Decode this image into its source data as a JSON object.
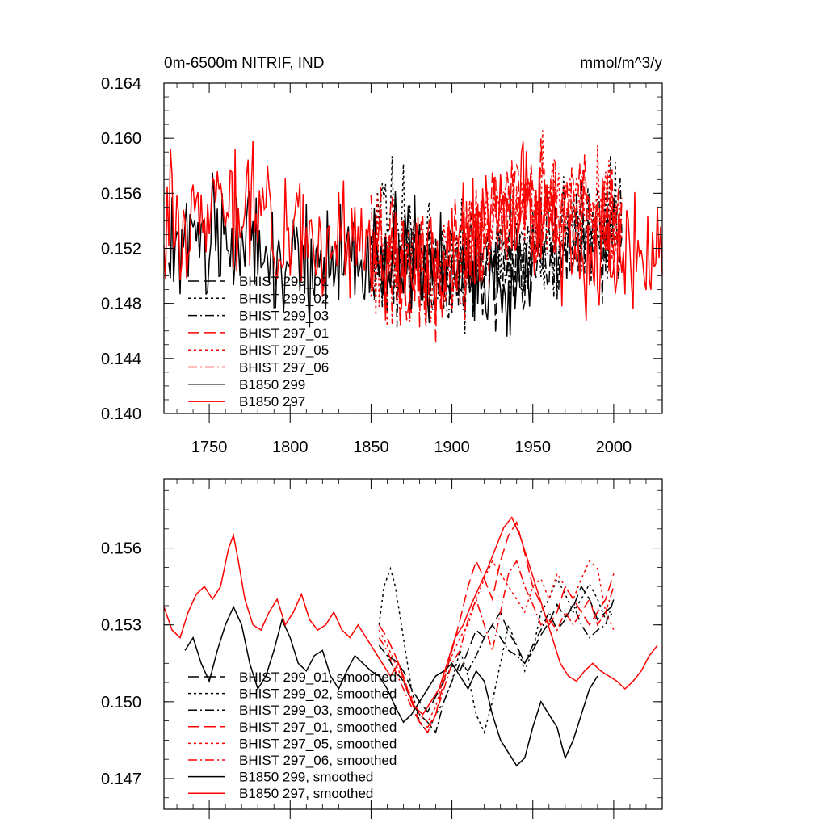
{
  "chart_data": [
    {
      "type": "line",
      "title": "0m-6500m NITRIF, IND",
      "units": "mmol/m^3/y",
      "ylim": [
        0.14,
        0.164
      ],
      "xlim": [
        1722,
        2030
      ],
      "yticks": [
        "0.140",
        "0.144",
        "0.148",
        "0.152",
        "0.156",
        "0.160",
        "0.164"
      ],
      "yticks_values": [
        0.14,
        0.144,
        0.148,
        0.152,
        0.156,
        0.16,
        0.164
      ],
      "xticks": [
        "1750",
        "1800",
        "1850",
        "1900",
        "1950",
        "2000"
      ],
      "xticks_values": [
        1750,
        1800,
        1850,
        1900,
        1950,
        2000
      ],
      "legend_position": "bottom-left",
      "series": [
        {
          "name": "BHIST 299_01",
          "color": "#000000",
          "dash": "longdash",
          "x_range": [
            1850,
            2005
          ],
          "mean": 0.1515,
          "amp": 0.004,
          "seed": 11,
          "anchors": [
            [
              1850,
              0.151
            ],
            [
              1900,
              0.151
            ],
            [
              1950,
              0.151
            ],
            [
              2005,
              0.153
            ]
          ]
        },
        {
          "name": "BHIST 299_02",
          "color": "#000000",
          "dash": "dot",
          "x_range": [
            1850,
            2005
          ],
          "mean": 0.1518,
          "amp": 0.0042,
          "seed": 12,
          "anchors": [
            [
              1850,
              0.151
            ],
            [
              1860,
              0.155
            ],
            [
              1900,
              0.151
            ],
            [
              1950,
              0.152
            ],
            [
              2005,
              0.154
            ]
          ]
        },
        {
          "name": "BHIST 299_03",
          "color": "#000000",
          "dash": "dashdot",
          "x_range": [
            1850,
            2005
          ],
          "mean": 0.1515,
          "amp": 0.004,
          "seed": 13,
          "anchors": [
            [
              1850,
              0.151
            ],
            [
              1900,
              0.15
            ],
            [
              1950,
              0.152
            ],
            [
              2005,
              0.153
            ]
          ]
        },
        {
          "name": "BHIST 297_01",
          "color": "#ff0000",
          "dash": "longdash",
          "x_range": [
            1850,
            2005
          ],
          "mean": 0.1528,
          "amp": 0.0042,
          "seed": 21,
          "anchors": [
            [
              1850,
              0.152
            ],
            [
              1890,
              0.15
            ],
            [
              1940,
              0.156
            ],
            [
              2005,
              0.154
            ]
          ]
        },
        {
          "name": "BHIST 297_05",
          "color": "#ff0000",
          "dash": "dot",
          "x_range": [
            1850,
            2005
          ],
          "mean": 0.153,
          "amp": 0.0042,
          "seed": 22,
          "anchors": [
            [
              1850,
              0.152
            ],
            [
              1890,
              0.15
            ],
            [
              1935,
              0.155
            ],
            [
              2005,
              0.155
            ]
          ]
        },
        {
          "name": "BHIST 297_06",
          "color": "#ff0000",
          "dash": "dashdot",
          "x_range": [
            1850,
            2005
          ],
          "mean": 0.1528,
          "amp": 0.0042,
          "seed": 23,
          "anchors": [
            [
              1850,
              0.152
            ],
            [
              1890,
              0.15
            ],
            [
              1945,
              0.155
            ],
            [
              2005,
              0.154
            ]
          ]
        },
        {
          "name": "B1850 299",
          "color": "#000000",
          "dash": "solid",
          "x_range": [
            1725,
            1950
          ],
          "mean": 0.151,
          "amp": 0.0042,
          "seed": 31,
          "anchors": [
            [
              1725,
              0.152
            ],
            [
              1765,
              0.153
            ],
            [
              1800,
              0.151
            ],
            [
              1860,
              0.151
            ],
            [
              1900,
              0.15
            ],
            [
              1950,
              0.149
            ]
          ]
        },
        {
          "name": "B1850 297",
          "color": "#ff0000",
          "dash": "solid",
          "x_range": [
            1722,
            2030
          ],
          "mean": 0.153,
          "amp": 0.0045,
          "seed": 32,
          "anchors": [
            [
              1722,
              0.154
            ],
            [
              1765,
              0.156
            ],
            [
              1800,
              0.153
            ],
            [
              1850,
              0.152
            ],
            [
              1890,
              0.15
            ],
            [
              1940,
              0.156
            ],
            [
              1970,
              0.152
            ],
            [
              2030,
              0.152
            ]
          ]
        }
      ]
    },
    {
      "type": "line",
      "title": "",
      "ylim": [
        0.1458,
        0.1587
      ],
      "xlim": [
        1722,
        2030
      ],
      "yticks": [
        "0.147",
        "0.150",
        "0.153",
        "0.156"
      ],
      "yticks_values": [
        0.147,
        0.15,
        0.153,
        0.156
      ],
      "xticks_values": [
        1750,
        1800,
        1850,
        1900,
        1950,
        2000
      ],
      "legend_position": "bottom-left",
      "series": [
        {
          "name": "BHIST 299_01, smoothed",
          "color": "#000000",
          "dash": "longdash",
          "x": [
            1860,
            1865,
            1870,
            1875,
            1880,
            1885,
            1890,
            1895,
            1900,
            1905,
            1910,
            1915,
            1920,
            1925,
            1930,
            1935,
            1940,
            1945,
            1950,
            1955,
            1960,
            1965,
            1970,
            1975,
            1980,
            1985,
            1990,
            1995,
            2000
          ],
          "y": [
            0.1518,
            0.1516,
            0.1512,
            0.1505,
            0.15,
            0.1496,
            0.1502,
            0.1508,
            0.1514,
            0.1512,
            0.152,
            0.1528,
            0.1525,
            0.153,
            0.1535,
            0.1527,
            0.1522,
            0.1515,
            0.152,
            0.1526,
            0.1531,
            0.1538,
            0.1533,
            0.1537,
            0.1545,
            0.154,
            0.1532,
            0.1535,
            0.1538
          ]
        },
        {
          "name": "BHIST 299_02, smoothed",
          "color": "#000000",
          "dash": "dot",
          "x": [
            1855,
            1858,
            1862,
            1865,
            1870,
            1875,
            1880,
            1885,
            1890,
            1895,
            1900,
            1905,
            1910,
            1915,
            1920,
            1925,
            1930,
            1935,
            1940,
            1945,
            1950,
            1955,
            1960,
            1965,
            1970,
            1975,
            1980,
            1985,
            1990,
            1995,
            2000
          ],
          "y": [
            0.153,
            0.1545,
            0.1552,
            0.1545,
            0.1525,
            0.1505,
            0.1492,
            0.1488,
            0.1495,
            0.15,
            0.1508,
            0.152,
            0.151,
            0.1495,
            0.1488,
            0.15,
            0.1515,
            0.153,
            0.1522,
            0.1512,
            0.152,
            0.1535,
            0.154,
            0.1548,
            0.1542,
            0.1535,
            0.154,
            0.1546,
            0.154,
            0.1532,
            0.1535
          ]
        },
        {
          "name": "BHIST 299_03, smoothed",
          "color": "#000000",
          "dash": "dashdot",
          "x": [
            1855,
            1860,
            1865,
            1870,
            1875,
            1880,
            1885,
            1890,
            1895,
            1900,
            1905,
            1910,
            1915,
            1920,
            1925,
            1930,
            1935,
            1940,
            1945,
            1950,
            1955,
            1960,
            1965,
            1970,
            1975,
            1980,
            1985,
            1990,
            1995,
            2000
          ],
          "y": [
            0.1522,
            0.1518,
            0.1512,
            0.1508,
            0.15,
            0.1495,
            0.1492,
            0.1488,
            0.15,
            0.1508,
            0.1515,
            0.1512,
            0.1518,
            0.1525,
            0.153,
            0.1525,
            0.152,
            0.1518,
            0.1515,
            0.1522,
            0.1528,
            0.1535,
            0.1528,
            0.1532,
            0.1538,
            0.153,
            0.1525,
            0.1528,
            0.153,
            0.154
          ]
        },
        {
          "name": "BHIST 297_01, smoothed",
          "color": "#ff0000",
          "dash": "longdash",
          "x": [
            1855,
            1860,
            1865,
            1870,
            1875,
            1880,
            1885,
            1890,
            1895,
            1900,
            1905,
            1910,
            1915,
            1920,
            1925,
            1930,
            1935,
            1940,
            1945,
            1950,
            1955,
            1960,
            1965,
            1970,
            1975,
            1980,
            1985,
            1990,
            1995,
            2000
          ],
          "y": [
            0.153,
            0.1525,
            0.1518,
            0.151,
            0.15,
            0.1492,
            0.149,
            0.1495,
            0.1508,
            0.152,
            0.1532,
            0.1545,
            0.1555,
            0.1548,
            0.154,
            0.1555,
            0.1565,
            0.157,
            0.1558,
            0.1545,
            0.1538,
            0.153,
            0.1535,
            0.1545,
            0.154,
            0.1535,
            0.153,
            0.1535,
            0.154,
            0.155
          ]
        },
        {
          "name": "BHIST 297_05, smoothed",
          "color": "#ff0000",
          "dash": "dot",
          "x": [
            1855,
            1860,
            1865,
            1870,
            1875,
            1880,
            1885,
            1890,
            1895,
            1900,
            1905,
            1910,
            1915,
            1920,
            1925,
            1930,
            1935,
            1940,
            1945,
            1950,
            1955,
            1960,
            1965,
            1970,
            1975,
            1980,
            1985,
            1990,
            1995,
            2000
          ],
          "y": [
            0.1528,
            0.1522,
            0.1515,
            0.1508,
            0.1502,
            0.1495,
            0.1492,
            0.1498,
            0.151,
            0.1518,
            0.1525,
            0.153,
            0.154,
            0.1548,
            0.1555,
            0.155,
            0.1545,
            0.154,
            0.1535,
            0.1545,
            0.1548,
            0.154,
            0.155,
            0.1545,
            0.154,
            0.1548,
            0.1555,
            0.1552,
            0.1535,
            0.1528
          ]
        },
        {
          "name": "BHIST 297_06, smoothed",
          "color": "#ff0000",
          "dash": "dashdot",
          "x": [
            1855,
            1860,
            1865,
            1870,
            1875,
            1880,
            1885,
            1890,
            1895,
            1900,
            1905,
            1910,
            1915,
            1920,
            1925,
            1930,
            1935,
            1940,
            1945,
            1950,
            1955,
            1960,
            1965,
            1970,
            1975,
            1980,
            1985,
            1990,
            1995,
            2000
          ],
          "y": [
            0.1525,
            0.152,
            0.1512,
            0.1505,
            0.1498,
            0.1492,
            0.1488,
            0.1495,
            0.1505,
            0.1515,
            0.152,
            0.1532,
            0.154,
            0.153,
            0.152,
            0.1535,
            0.155,
            0.1555,
            0.1545,
            0.1538,
            0.153,
            0.1532,
            0.1528,
            0.1535,
            0.153,
            0.1535,
            0.154,
            0.153,
            0.1535,
            0.1545
          ]
        },
        {
          "name": "B1850 299, smoothed",
          "color": "#000000",
          "dash": "solid",
          "x": [
            1735,
            1740,
            1745,
            1750,
            1755,
            1760,
            1765,
            1770,
            1775,
            1780,
            1785,
            1790,
            1795,
            1800,
            1805,
            1810,
            1815,
            1820,
            1825,
            1830,
            1835,
            1840,
            1845,
            1850,
            1855,
            1860,
            1865,
            1870,
            1875,
            1880,
            1885,
            1890,
            1895,
            1900,
            1905,
            1910,
            1915,
            1920,
            1925,
            1930,
            1935,
            1940,
            1945,
            1950,
            1955,
            1960,
            1965,
            1970,
            1975,
            1980,
            1985,
            1990
          ],
          "y": [
            0.152,
            0.1525,
            0.1515,
            0.1508,
            0.152,
            0.153,
            0.1537,
            0.153,
            0.1515,
            0.1505,
            0.151,
            0.152,
            0.1532,
            0.1525,
            0.1515,
            0.1512,
            0.1518,
            0.152,
            0.151,
            0.1505,
            0.1512,
            0.1518,
            0.1515,
            0.1512,
            0.151,
            0.1505,
            0.1498,
            0.1492,
            0.1495,
            0.15,
            0.1505,
            0.151,
            0.1512,
            0.1515,
            0.151,
            0.1505,
            0.1512,
            0.1508,
            0.1495,
            0.1485,
            0.148,
            0.1475,
            0.1478,
            0.149,
            0.15,
            0.1495,
            0.149,
            0.1478,
            0.1485,
            0.1495,
            0.1505,
            0.151
          ]
        },
        {
          "name": "B1850 297, smoothed",
          "color": "#ff0000",
          "dash": "solid",
          "x": [
            1722,
            1727,
            1732,
            1737,
            1742,
            1747,
            1752,
            1757,
            1762,
            1765,
            1768,
            1772,
            1777,
            1782,
            1787,
            1792,
            1797,
            1802,
            1807,
            1812,
            1817,
            1822,
            1827,
            1832,
            1837,
            1842,
            1847,
            1852,
            1857,
            1862,
            1867,
            1872,
            1877,
            1882,
            1887,
            1892,
            1897,
            1902,
            1907,
            1912,
            1917,
            1922,
            1927,
            1932,
            1937,
            1942,
            1947,
            1952,
            1957,
            1962,
            1967,
            1972,
            1977,
            1982,
            1987,
            1992,
            1997,
            2002,
            2007,
            2012,
            2017,
            2022,
            2027
          ],
          "y": [
            0.1537,
            0.1528,
            0.1525,
            0.1535,
            0.1542,
            0.1545,
            0.154,
            0.1545,
            0.156,
            0.1565,
            0.1555,
            0.154,
            0.153,
            0.1528,
            0.1535,
            0.154,
            0.153,
            0.1535,
            0.1542,
            0.1532,
            0.1528,
            0.153,
            0.1535,
            0.1528,
            0.1525,
            0.153,
            0.1525,
            0.152,
            0.1515,
            0.151,
            0.1515,
            0.1505,
            0.1498,
            0.1495,
            0.15,
            0.1505,
            0.1515,
            0.1525,
            0.153,
            0.1538,
            0.1545,
            0.1552,
            0.156,
            0.1568,
            0.1572,
            0.1565,
            0.1555,
            0.1545,
            0.1535,
            0.1525,
            0.1515,
            0.151,
            0.1508,
            0.1512,
            0.1515,
            0.1512,
            0.151,
            0.1508,
            0.1505,
            0.1508,
            0.1512,
            0.1518,
            0.1522
          ]
        }
      ]
    }
  ]
}
